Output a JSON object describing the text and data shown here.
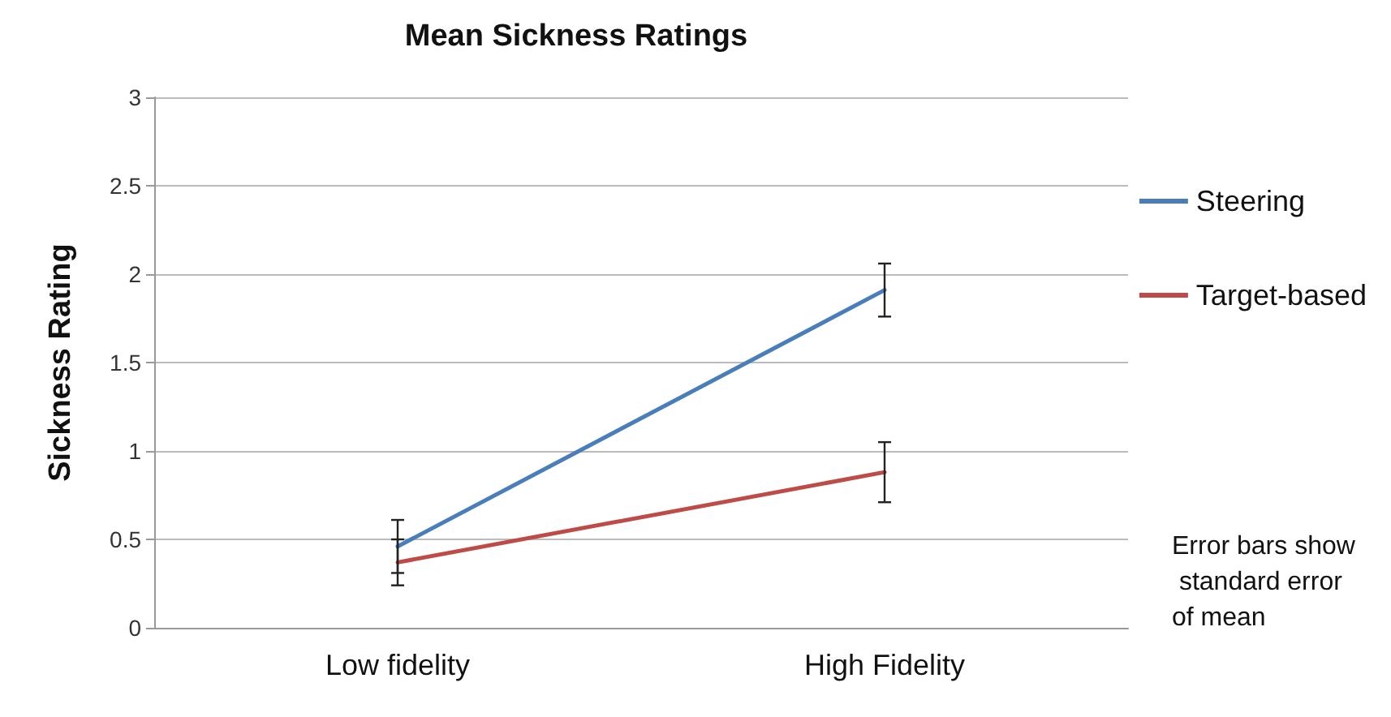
{
  "chart_data": {
    "type": "line",
    "title": "Mean Sickness Ratings",
    "ylabel": "Sickness Rating",
    "categories": [
      "Low fidelity",
      "High Fidelity"
    ],
    "series": [
      {
        "name": "Steering",
        "color": "#4a7ebb",
        "values": [
          0.46,
          1.91
        ],
        "errors": [
          0.15,
          0.15
        ]
      },
      {
        "name": "Target-based",
        "color": "#be4b48",
        "values": [
          0.37,
          0.88
        ],
        "errors": [
          0.13,
          0.17
        ]
      }
    ],
    "ylim": [
      0,
      3
    ],
    "yticks": [
      0,
      0.5,
      1,
      1.5,
      2,
      2.5,
      3
    ],
    "grid": "y",
    "legend": "right",
    "marker": "none",
    "line_style": "solid",
    "annotations": [
      "Error bars show standard error of mean"
    ]
  }
}
